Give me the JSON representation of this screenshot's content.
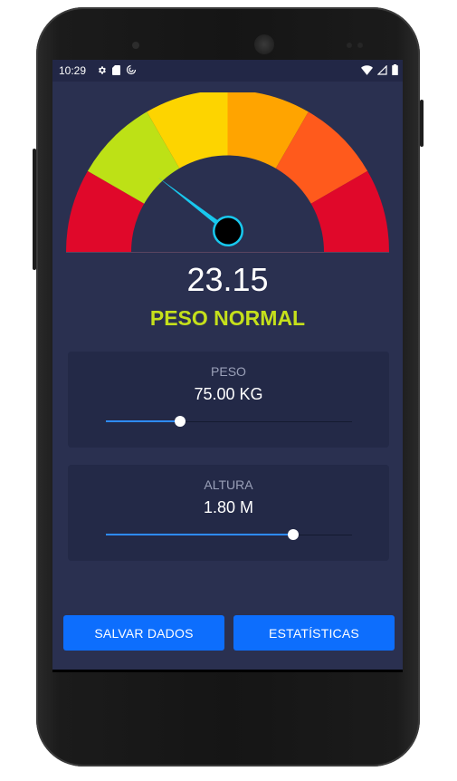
{
  "status_bar": {
    "time": "10:29",
    "left_icons": [
      "gear-icon",
      "sd-card-icon",
      "sync-icon"
    ],
    "right_icons": [
      "wifi-icon",
      "cell-signal-icon",
      "battery-icon"
    ]
  },
  "gauge": {
    "segment_colors": [
      "#e0082a",
      "#bde116",
      "#fdd400",
      "#ffa400",
      "#ff5a1c",
      "#e0082a"
    ],
    "needle_color": "#18c8ee",
    "background": "#2a3050"
  },
  "result": {
    "bmi": "23.15",
    "classification": "PESO NORMAL",
    "classification_color": "#c5e01b"
  },
  "weight": {
    "label": "PESO",
    "value": "75.00 KG",
    "slider_fraction": 0.3
  },
  "height": {
    "label": "ALTURA",
    "value": "1.80 M",
    "slider_fraction": 0.76
  },
  "buttons": {
    "save": "SALVAR DADOS",
    "stats": "ESTATÍSTICAS"
  },
  "colors": {
    "accent": "#0d6efd",
    "slider_fill": "#2e8bff",
    "card_bg": "#232947",
    "screen_bg": "#2a3050"
  }
}
